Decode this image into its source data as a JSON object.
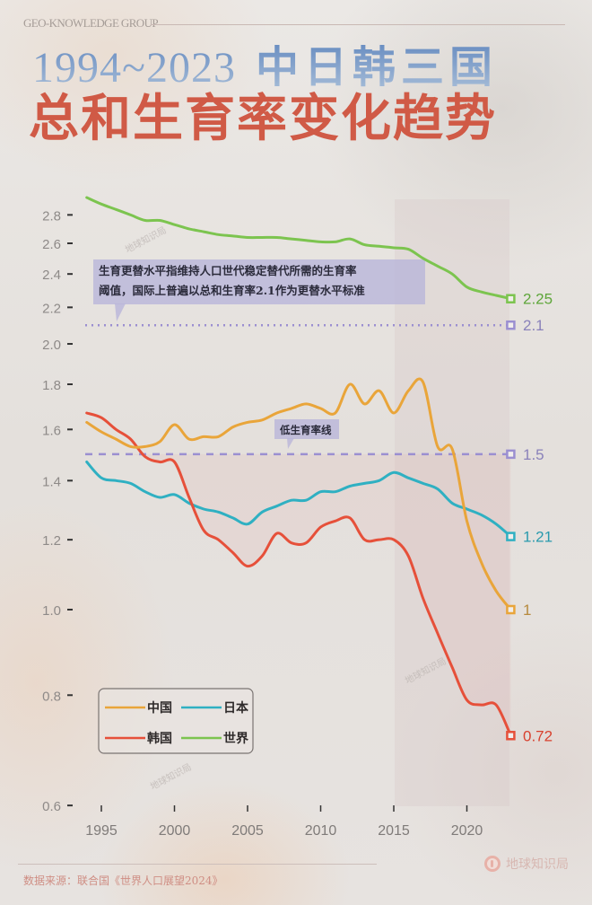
{
  "header": {
    "brand": "GEO-KNOWLEDGE GROUP",
    "title_years": "1994~2023",
    "title_countries": "中日韩三国",
    "title_main": "总和生育率变化趋势"
  },
  "annotations": {
    "replacement_note_line1": "生育更替水平指维持人口世代稳定替代所需的生育率",
    "replacement_note_line2": "阈值，国际上普遍以总和生育率2.1作为更替水平标准",
    "low_fertility_label": "低生育率线",
    "watermark": "地球知识局"
  },
  "legend": {
    "china": "中国",
    "japan": "日本",
    "korea": "韩国",
    "world": "世界"
  },
  "end_labels": {
    "world": "2.25",
    "replacement": "2.1",
    "low": "1.5",
    "japan": "1.21",
    "china": "1",
    "korea": "0.72"
  },
  "footer": {
    "source": "数据来源：联合国《世界人口展望2024》",
    "logo_text": "地球知识局"
  },
  "colors": {
    "china": "#e9a53a",
    "japan": "#2fb0c2",
    "korea": "#e6503a",
    "world": "#7cc44f",
    "reference": "#9b8fd1",
    "title_blue": "#7d9ec8",
    "title_red": "#d05a46"
  },
  "chart_data": {
    "type": "line",
    "title": "1994~2023 中日韩三国 总和生育率变化趋势",
    "xlabel": "",
    "ylabel": "",
    "y_scale": "log",
    "ylim": [
      0.6,
      2.9
    ],
    "xlim": [
      1994,
      2023
    ],
    "x_ticks": [
      1995,
      2000,
      2005,
      2010,
      2015,
      2020
    ],
    "y_ticks": [
      0.6,
      0.8,
      1.0,
      1.2,
      1.4,
      1.6,
      1.8,
      2.0,
      2.2,
      2.4,
      2.6,
      2.8
    ],
    "x": [
      1994,
      1995,
      1996,
      1997,
      1998,
      1999,
      2000,
      2001,
      2002,
      2003,
      2004,
      2005,
      2006,
      2007,
      2008,
      2009,
      2010,
      2011,
      2012,
      2013,
      2014,
      2015,
      2016,
      2017,
      2018,
      2019,
      2020,
      2021,
      2022,
      2023
    ],
    "series": [
      {
        "name": "中国",
        "color": "#e9a53a",
        "values": [
          1.63,
          1.59,
          1.56,
          1.53,
          1.53,
          1.55,
          1.62,
          1.56,
          1.57,
          1.57,
          1.61,
          1.63,
          1.64,
          1.67,
          1.69,
          1.71,
          1.69,
          1.67,
          1.8,
          1.71,
          1.77,
          1.67,
          1.77,
          1.81,
          1.53,
          1.52,
          1.26,
          1.13,
          1.05,
          1.0
        ]
      },
      {
        "name": "日本",
        "color": "#2fb0c2",
        "values": [
          1.47,
          1.41,
          1.4,
          1.39,
          1.36,
          1.34,
          1.35,
          1.32,
          1.3,
          1.29,
          1.27,
          1.25,
          1.29,
          1.31,
          1.33,
          1.33,
          1.36,
          1.36,
          1.38,
          1.39,
          1.4,
          1.43,
          1.41,
          1.39,
          1.37,
          1.32,
          1.3,
          1.28,
          1.25,
          1.21
        ]
      },
      {
        "name": "韩国",
        "color": "#e6503a",
        "values": [
          1.67,
          1.65,
          1.6,
          1.56,
          1.49,
          1.47,
          1.47,
          1.34,
          1.23,
          1.2,
          1.16,
          1.12,
          1.15,
          1.22,
          1.19,
          1.19,
          1.24,
          1.26,
          1.27,
          1.2,
          1.2,
          1.2,
          1.15,
          1.03,
          0.94,
          0.86,
          0.79,
          0.78,
          0.78,
          0.72
        ]
      },
      {
        "name": "世界",
        "color": "#7cc44f",
        "values": [
          2.93,
          2.88,
          2.84,
          2.8,
          2.76,
          2.76,
          2.73,
          2.7,
          2.68,
          2.66,
          2.65,
          2.64,
          2.64,
          2.64,
          2.63,
          2.62,
          2.61,
          2.61,
          2.63,
          2.59,
          2.58,
          2.57,
          2.56,
          2.5,
          2.45,
          2.4,
          2.32,
          2.29,
          2.27,
          2.25
        ]
      }
    ],
    "reference_lines": [
      {
        "name": "更替水平",
        "value": 2.1,
        "style": "dotted"
      },
      {
        "name": "低生育率线",
        "value": 1.5,
        "style": "dashed"
      }
    ],
    "end_labels": {
      "世界": 2.25,
      "日本": 1.21,
      "中国": 1.0,
      "韩国": 0.72
    },
    "legend_position": "lower-left",
    "grid": false
  }
}
